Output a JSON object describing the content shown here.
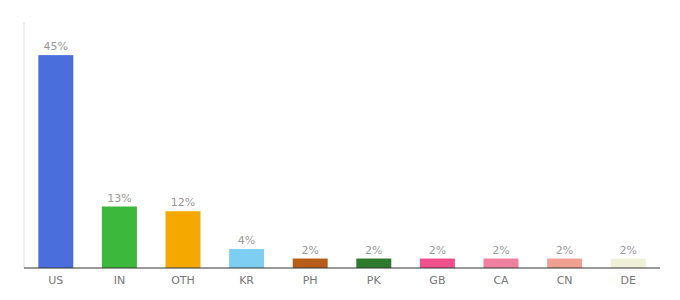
{
  "chart_data": {
    "type": "bar",
    "categories": [
      "US",
      "IN",
      "OTH",
      "KR",
      "PH",
      "PK",
      "GB",
      "CA",
      "CN",
      "DE"
    ],
    "values": [
      45,
      13,
      12,
      4,
      2,
      2,
      2,
      2,
      2,
      2
    ],
    "value_labels": [
      "45%",
      "13%",
      "12%",
      "4%",
      "2%",
      "2%",
      "2%",
      "2%",
      "2%",
      "2%"
    ],
    "colors": [
      "#4a6fdc",
      "#3cb83c",
      "#f5a800",
      "#7ecef4",
      "#b85c1a",
      "#2d7a2d",
      "#f0508c",
      "#f080a0",
      "#f0a090",
      "#f0f0d8"
    ],
    "ylim": [
      0,
      52
    ],
    "data_labels": true,
    "tick_labels": "x",
    "grid": false
  }
}
